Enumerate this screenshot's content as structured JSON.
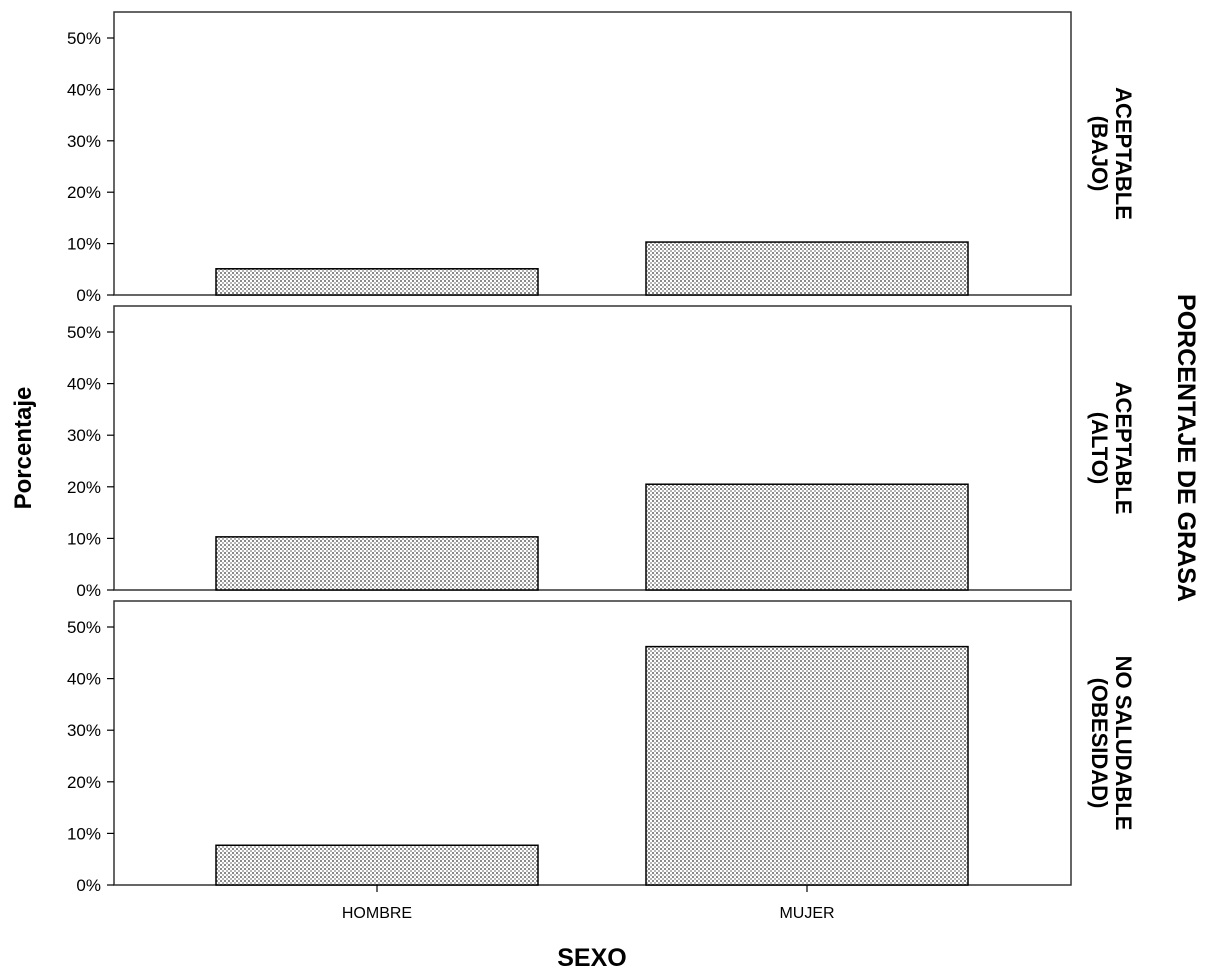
{
  "chart_data": {
    "type": "bar",
    "ylabel": "Porcentaje",
    "xlabel": "SEXO",
    "row_title": "PORCENTAJE DE GRASA",
    "categories": [
      "HOMBRE",
      "MUJER"
    ],
    "ylim": [
      0,
      50
    ],
    "yticks": [
      "0%",
      "10%",
      "20%",
      "30%",
      "40%",
      "50%"
    ],
    "ytick_values": [
      0,
      10,
      20,
      30,
      40,
      50
    ],
    "bar_fill": "#e8e8e8",
    "bar_stroke": "#000000",
    "panels": [
      {
        "label_lines": [
          "ACEPTABLE",
          "(BAJO)"
        ],
        "values": [
          5.1,
          10.3
        ]
      },
      {
        "label_lines": [
          "ACEPTABLE",
          "(ALTO)"
        ],
        "values": [
          10.3,
          20.5
        ]
      },
      {
        "label_lines": [
          "NO SALUDABLE",
          "(OBESIDAD)"
        ],
        "values": [
          7.7,
          46.2
        ]
      }
    ],
    "grid": false,
    "legend": "none"
  }
}
